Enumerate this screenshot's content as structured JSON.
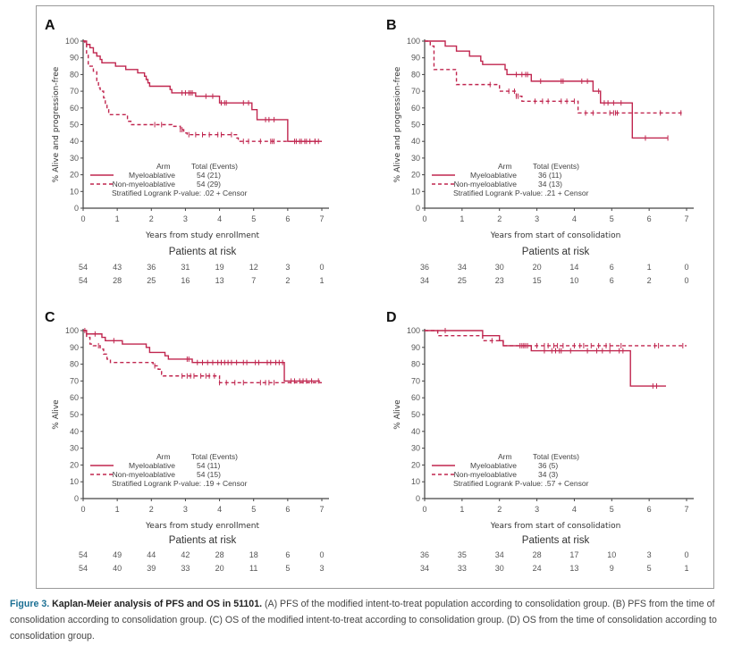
{
  "colors": {
    "curve": "#c0264f",
    "axis": "#444444",
    "frame": "#9a9a9a",
    "caption_lead": "#1a6f93"
  },
  "caption": {
    "lead": "Figure 3.",
    "bold": "Kaplan-Meier analysis of PFS and OS in 51101.",
    "text": "(A) PFS of the modified intent-to-treat population according to consolidation group. (B) PFS from the time of consolidation according to consolidation group. (C) OS of the modified intent-to-treat according to consolidation group. (D) OS from the time of consolidation according to consolidation group."
  },
  "chart_data": [
    {
      "type": "line",
      "panel": "A",
      "title": "",
      "xlabel": "Years from study enrollment",
      "ylabel": "% Alive and progression-free",
      "xlim": [
        0,
        7
      ],
      "ylim": [
        0,
        100
      ],
      "x_ticks": [
        0,
        1,
        2,
        3,
        4,
        5,
        6,
        7
      ],
      "y_ticks": [
        0,
        10,
        20,
        30,
        40,
        50,
        60,
        70,
        80,
        90,
        100
      ],
      "legend": {
        "header_arm": "Arm",
        "header_total": "Total (Events)",
        "pvalue_text": "Stratified Logrank P-value: .02 + Censor",
        "placement": "bottom-left"
      },
      "series": [
        {
          "name": "Myeloablative",
          "total_events": "54 (21)",
          "style": "solid",
          "steps": [
            [
              0,
              100
            ],
            [
              0.1,
              98
            ],
            [
              0.2,
              96
            ],
            [
              0.3,
              93
            ],
            [
              0.4,
              91
            ],
            [
              0.5,
              89
            ],
            [
              0.55,
              87
            ],
            [
              0.9,
              87
            ],
            [
              0.95,
              85
            ],
            [
              1.2,
              85
            ],
            [
              1.25,
              83
            ],
            [
              1.55,
              83
            ],
            [
              1.6,
              81
            ],
            [
              1.75,
              81
            ],
            [
              1.8,
              79
            ],
            [
              1.85,
              77
            ],
            [
              1.9,
              75
            ],
            [
              1.95,
              73
            ],
            [
              2.5,
              73
            ],
            [
              2.55,
              71
            ],
            [
              2.6,
              69
            ],
            [
              3.25,
              69
            ],
            [
              3.3,
              67
            ],
            [
              3.95,
              67
            ],
            [
              4.0,
              63
            ],
            [
              4.9,
              63
            ],
            [
              4.95,
              59
            ],
            [
              5.05,
              59
            ],
            [
              5.1,
              53
            ],
            [
              6.0,
              53
            ],
            [
              6.0,
              40
            ],
            [
              7.0,
              40
            ]
          ],
          "censor": [
            2.9,
            3.0,
            3.1,
            3.15,
            3.2,
            3.6,
            3.8,
            4.05,
            4.15,
            4.2,
            4.7,
            4.85,
            5.35,
            5.45,
            5.6,
            6.25,
            6.35,
            6.5,
            6.65,
            6.8,
            6.9
          ]
        },
        {
          "name": "Non-myeloablative",
          "total_events": "54 (29)",
          "style": "dashed",
          "steps": [
            [
              0,
              100
            ],
            [
              0.05,
              98
            ],
            [
              0.1,
              92
            ],
            [
              0.15,
              85
            ],
            [
              0.3,
              82
            ],
            [
              0.4,
              76
            ],
            [
              0.45,
              72
            ],
            [
              0.5,
              70
            ],
            [
              0.6,
              66
            ],
            [
              0.65,
              62
            ],
            [
              0.7,
              59
            ],
            [
              0.75,
              56
            ],
            [
              1.2,
              56
            ],
            [
              1.3,
              52
            ],
            [
              1.4,
              50
            ],
            [
              2.55,
              50
            ],
            [
              2.6,
              49
            ],
            [
              2.85,
              47
            ],
            [
              2.95,
              45
            ],
            [
              3.05,
              44
            ],
            [
              4.4,
              44
            ],
            [
              4.5,
              42
            ],
            [
              4.55,
              40
            ],
            [
              7.0,
              40
            ]
          ],
          "censor": [
            2.1,
            2.3,
            2.85,
            2.9,
            3.1,
            3.3,
            3.5,
            3.7,
            3.95,
            4.05,
            4.35,
            4.7,
            4.85,
            5.2,
            5.5,
            5.55,
            5.6,
            6.2,
            6.4,
            6.55,
            6.8
          ]
        }
      ],
      "risk_table": {
        "title": "Patients at risk",
        "rows": [
          [
            54,
            43,
            36,
            31,
            19,
            12,
            3,
            0
          ],
          [
            54,
            28,
            25,
            16,
            13,
            7,
            2,
            1
          ]
        ]
      }
    },
    {
      "type": "line",
      "panel": "B",
      "title": "",
      "xlabel": "Years from start of consolidation",
      "ylabel": "% Alive and progression-free",
      "xlim": [
        0,
        7
      ],
      "ylim": [
        0,
        100
      ],
      "x_ticks": [
        0,
        1,
        2,
        3,
        4,
        5,
        6,
        7
      ],
      "y_ticks": [
        0,
        10,
        20,
        30,
        40,
        50,
        60,
        70,
        80,
        90,
        100
      ],
      "legend": {
        "header_arm": "Arm",
        "header_total": "Total (Events)",
        "pvalue_text": "Stratified Logrank P-value: .21 + Censor",
        "placement": "bottom-left"
      },
      "series": [
        {
          "name": "Myeloablative",
          "total_events": "36 (11)",
          "style": "solid",
          "steps": [
            [
              0,
              100
            ],
            [
              0.55,
              100
            ],
            [
              0.55,
              97
            ],
            [
              0.85,
              97
            ],
            [
              0.85,
              94
            ],
            [
              1.2,
              94
            ],
            [
              1.2,
              91
            ],
            [
              1.45,
              91
            ],
            [
              1.5,
              88
            ],
            [
              1.55,
              86
            ],
            [
              2.1,
              86
            ],
            [
              2.15,
              83
            ],
            [
              2.2,
              80
            ],
            [
              2.85,
              80
            ],
            [
              2.85,
              76
            ],
            [
              4.45,
              76
            ],
            [
              4.5,
              70
            ],
            [
              4.7,
              70
            ],
            [
              4.7,
              63
            ],
            [
              5.55,
              63
            ],
            [
              5.55,
              42
            ],
            [
              6.5,
              42
            ]
          ],
          "censor": [
            2.45,
            2.6,
            2.7,
            2.75,
            3.1,
            3.65,
            3.7,
            4.2,
            4.35,
            4.65,
            4.8,
            4.9,
            5.05,
            5.25,
            5.9,
            6.5
          ]
        },
        {
          "name": "Non-myeloablative",
          "total_events": "34 (13)",
          "style": "dashed",
          "steps": [
            [
              0,
              100
            ],
            [
              0.15,
              97
            ],
            [
              0.25,
              83
            ],
            [
              0.8,
              83
            ],
            [
              0.85,
              74
            ],
            [
              1.95,
              74
            ],
            [
              2.0,
              70
            ],
            [
              2.35,
              70
            ],
            [
              2.45,
              67
            ],
            [
              2.6,
              64
            ],
            [
              4.05,
              64
            ],
            [
              4.1,
              57
            ],
            [
              6.9,
              57
            ]
          ],
          "censor": [
            1.75,
            2.25,
            2.4,
            2.45,
            2.5,
            2.95,
            3.15,
            3.3,
            3.65,
            3.8,
            4.0,
            4.3,
            4.5,
            4.95,
            5.05,
            5.1,
            5.15,
            6.3,
            6.85
          ]
        }
      ],
      "risk_table": {
        "title": "Patients at risk",
        "rows": [
          [
            36,
            34,
            30,
            20,
            14,
            6,
            1,
            0
          ],
          [
            34,
            25,
            23,
            15,
            10,
            6,
            2,
            0
          ]
        ]
      }
    },
    {
      "type": "line",
      "panel": "C",
      "title": "",
      "xlabel": "Years from study enrollment",
      "ylabel": "% Alive",
      "xlim": [
        0,
        7
      ],
      "ylim": [
        0,
        100
      ],
      "x_ticks": [
        0,
        1,
        2,
        3,
        4,
        5,
        6,
        7
      ],
      "y_ticks": [
        0,
        10,
        20,
        30,
        40,
        50,
        60,
        70,
        80,
        90,
        100
      ],
      "legend": {
        "header_arm": "Arm",
        "header_total": "Total (Events)",
        "pvalue_text": "Stratified Logrank P-value: .19 + Censor",
        "placement": "bottom-left"
      },
      "series": [
        {
          "name": "Myeloablative",
          "total_events": "54 (11)",
          "style": "solid",
          "steps": [
            [
              0,
              100
            ],
            [
              0.1,
              98
            ],
            [
              0.5,
              98
            ],
            [
              0.55,
              96
            ],
            [
              0.65,
              94
            ],
            [
              1.1,
              94
            ],
            [
              1.15,
              92
            ],
            [
              1.8,
              92
            ],
            [
              1.85,
              90
            ],
            [
              1.95,
              87
            ],
            [
              2.35,
              87
            ],
            [
              2.4,
              85
            ],
            [
              2.5,
              83
            ],
            [
              3.15,
              83
            ],
            [
              3.2,
              81
            ],
            [
              5.9,
              81
            ],
            [
              5.9,
              70
            ],
            [
              6.95,
              70
            ]
          ],
          "censor": [
            0.05,
            0.35,
            0.9,
            3.05,
            3.1,
            3.35,
            3.5,
            3.65,
            3.8,
            3.95,
            4.05,
            4.15,
            4.25,
            4.35,
            4.5,
            4.7,
            4.8,
            5.05,
            5.15,
            5.4,
            5.5,
            5.65,
            5.75,
            5.85,
            6.1,
            6.2,
            6.35,
            6.45,
            6.55,
            6.7,
            6.9
          ]
        },
        {
          "name": "Non-myeloablative",
          "total_events": "54 (15)",
          "style": "dashed",
          "steps": [
            [
              0,
              100
            ],
            [
              0.1,
              96
            ],
            [
              0.2,
              92
            ],
            [
              0.3,
              91
            ],
            [
              0.5,
              89
            ],
            [
              0.6,
              86
            ],
            [
              0.7,
              83
            ],
            [
              0.8,
              81
            ],
            [
              1.9,
              81
            ],
            [
              2.05,
              79
            ],
            [
              2.2,
              77
            ],
            [
              2.3,
              74
            ],
            [
              2.35,
              73
            ],
            [
              3.95,
              73
            ],
            [
              4.0,
              69
            ],
            [
              7.0,
              69
            ]
          ],
          "censor": [
            0.45,
            2.1,
            2.9,
            3.05,
            3.15,
            3.25,
            3.45,
            3.6,
            3.7,
            3.85,
            4.0,
            4.2,
            4.45,
            4.7,
            5.2,
            5.35,
            5.45,
            5.6
          ]
        }
      ],
      "risk_table": {
        "title": "Patients at risk",
        "rows": [
          [
            54,
            49,
            44,
            42,
            28,
            18,
            6,
            0
          ],
          [
            54,
            40,
            39,
            33,
            20,
            11,
            5,
            3
          ]
        ]
      }
    },
    {
      "type": "line",
      "panel": "D",
      "title": "",
      "xlabel": "Years from start of consolidation",
      "ylabel": "% Alive",
      "xlim": [
        0,
        7
      ],
      "ylim": [
        0,
        100
      ],
      "x_ticks": [
        0,
        1,
        2,
        3,
        4,
        5,
        6,
        7
      ],
      "y_ticks": [
        0,
        10,
        20,
        30,
        40,
        50,
        60,
        70,
        80,
        90,
        100
      ],
      "legend": {
        "header_arm": "Arm",
        "header_total": "Total (Events)",
        "pvalue_text": "Stratified Logrank P-value: .57 + Censor",
        "placement": "bottom-left"
      },
      "series": [
        {
          "name": "Myeloablative",
          "total_events": "36 (5)",
          "style": "solid",
          "steps": [
            [
              0,
              100
            ],
            [
              1.55,
              100
            ],
            [
              1.55,
              97
            ],
            [
              2.0,
              97
            ],
            [
              2.0,
              94
            ],
            [
              2.1,
              94
            ],
            [
              2.1,
              91
            ],
            [
              2.85,
              91
            ],
            [
              2.85,
              88
            ],
            [
              5.5,
              88
            ],
            [
              5.5,
              67
            ],
            [
              6.45,
              67
            ]
          ],
          "censor": [
            0.55,
            2.65,
            2.7,
            2.75,
            3.2,
            3.4,
            3.5,
            3.6,
            3.65,
            3.9,
            4.35,
            4.6,
            4.75,
            4.95,
            5.2,
            5.3,
            6.1,
            6.2
          ]
        },
        {
          "name": "Non-myeloablative",
          "total_events": "34 (3)",
          "style": "dashed",
          "steps": [
            [
              0,
              100
            ],
            [
              0.35,
              97
            ],
            [
              1.55,
              97
            ],
            [
              1.55,
              94
            ],
            [
              2.1,
              94
            ],
            [
              2.1,
              91
            ],
            [
              7.0,
              91
            ]
          ],
          "censor": [
            1.8,
            2.55,
            2.6,
            2.65,
            3.0,
            3.2,
            3.3,
            3.45,
            3.55,
            3.7,
            4.0,
            4.15,
            4.25,
            4.45,
            4.65,
            4.85,
            4.95,
            5.25,
            6.15,
            6.25,
            6.9
          ]
        }
      ],
      "risk_table": {
        "title": "Patients at risk",
        "rows": [
          [
            36,
            35,
            34,
            28,
            17,
            10,
            3,
            0
          ],
          [
            34,
            33,
            30,
            24,
            13,
            9,
            5,
            1
          ]
        ]
      }
    }
  ]
}
